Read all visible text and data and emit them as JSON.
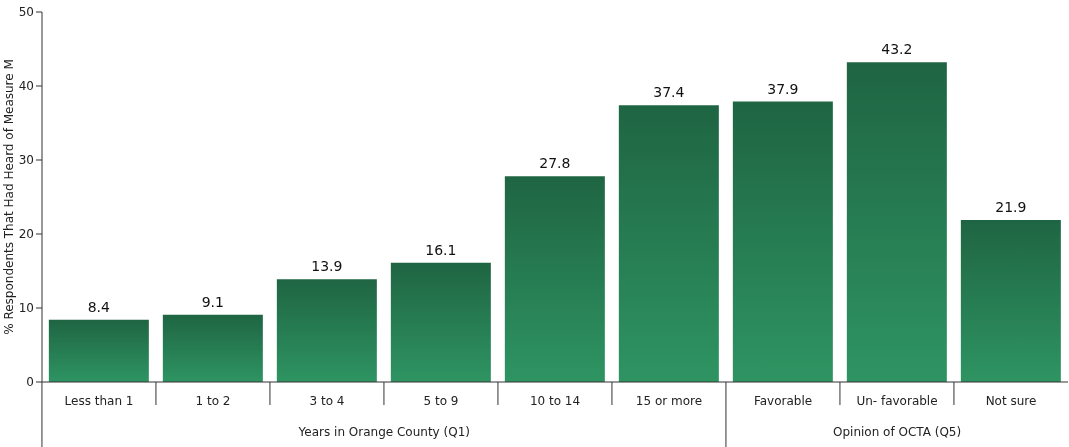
{
  "chart_data": {
    "type": "bar",
    "ylabel": "% Respondents That Had Heard of Measure M",
    "categories": [
      "Less than 1",
      "1 to 2",
      "3 to 4",
      "5 to 9",
      "10 to 14",
      "15 or more",
      "Favorable",
      "Un- favorable",
      "Not sure"
    ],
    "values": [
      8.4,
      9.1,
      13.9,
      16.1,
      27.8,
      37.4,
      37.9,
      43.2,
      21.9
    ],
    "color": "#2e9462",
    "ylim": [
      0,
      50
    ],
    "yticks": [
      0,
      10,
      20,
      30,
      40,
      50
    ],
    "grid": false,
    "data_labels": true,
    "annotations": [
      "Years in Orange County (Q1)",
      "Opinion of OCTA (Q5)"
    ]
  }
}
